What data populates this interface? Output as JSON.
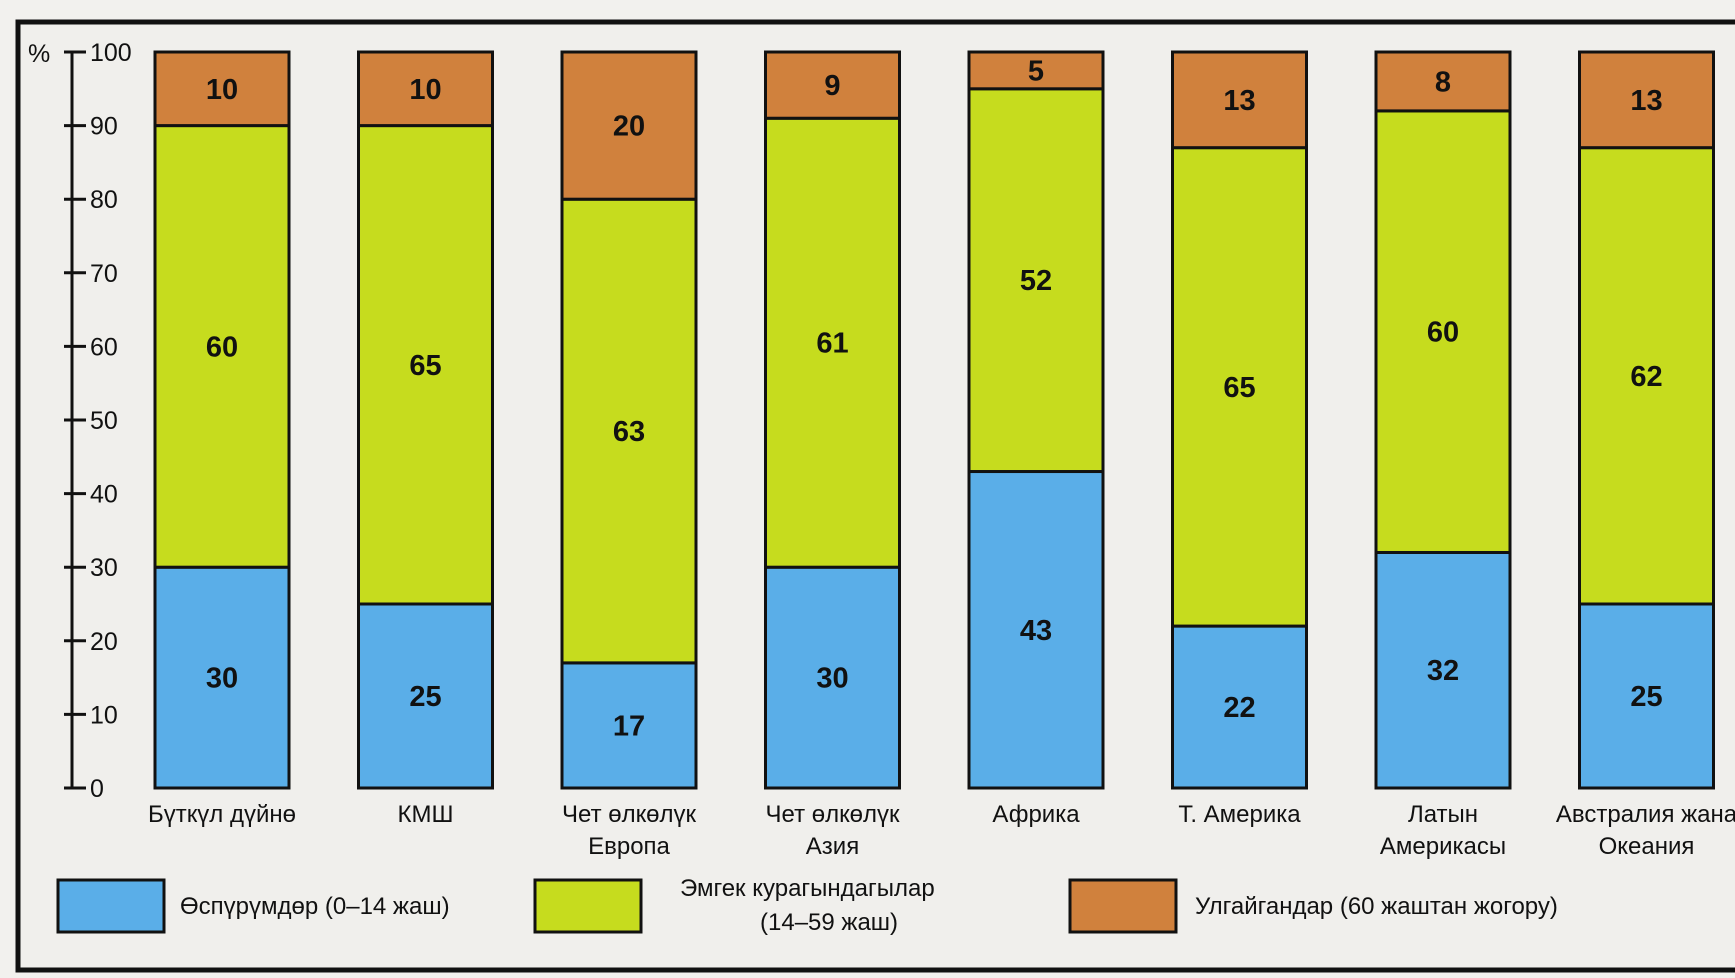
{
  "chart_data": {
    "type": "bar",
    "stacked": true,
    "y_unit": "%",
    "ylim": [
      0,
      100
    ],
    "y_ticks": [
      "0",
      "10",
      "20",
      "30",
      "40",
      "50",
      "60",
      "70",
      "80",
      "90",
      "100"
    ],
    "grid": false,
    "legend_position": "bottom",
    "categories": [
      [
        "Бүткүл дүйнө"
      ],
      [
        "КМШ"
      ],
      [
        "Чет өлкөлүк",
        "Европа"
      ],
      [
        "Чет өлкөлүк",
        "Азия"
      ],
      [
        "Африка"
      ],
      [
        "Т. Америка"
      ],
      [
        "Латын",
        "Америкасы"
      ],
      [
        "Австралия жана",
        "Океания"
      ]
    ],
    "series": [
      {
        "name": [
          "Өспүрүмдөр (0–14 жаш)"
        ],
        "color": "#5aaee8",
        "values": [
          30,
          25,
          17,
          30,
          43,
          22,
          32,
          25
        ]
      },
      {
        "name": [
          "Эмгек курагындагылар",
          "(14–59 жаш)"
        ],
        "color": "#c6dc1e",
        "values": [
          60,
          65,
          63,
          61,
          52,
          65,
          60,
          62
        ]
      },
      {
        "name": [
          "Улгайгандар (60 жаштан жогору)"
        ],
        "color": "#d0813d",
        "values": [
          10,
          10,
          20,
          9,
          5,
          13,
          8,
          13
        ]
      }
    ]
  }
}
